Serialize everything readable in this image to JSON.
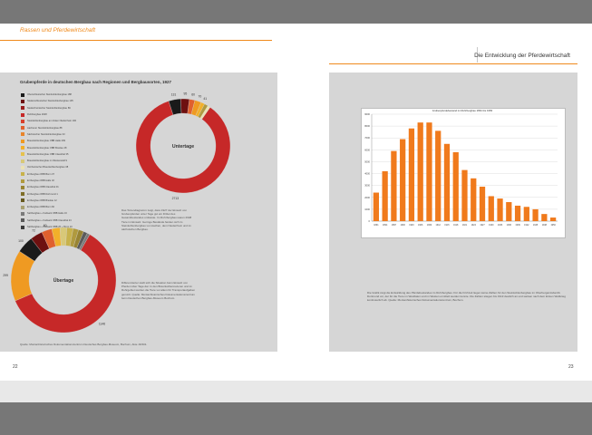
{
  "left_page": {
    "running_head": "Rassen und Pferdewirtschaft",
    "page_number": "22",
    "figure_title": "Grubenpferde in deutschen Bergbau nach Regionen und Bergbausorten, 1927",
    "legend": [
      {
        "label": "Oberschlesischer Steinkohlenbergbau 188",
        "color": "#1a1a1a"
      },
      {
        "label": "Niederschlesischer Steinkohlenbergbau 135",
        "color": "#6e1010"
      },
      {
        "label": "Niederrheinischer Steinkohlenbergbau 89",
        "color": "#991c1c"
      },
      {
        "label": "Ruhrbergbau 2948",
        "color": "#c62828"
      },
      {
        "label": "Steinkohlenbergbau am linken Niederrhein 190",
        "color": "#d8402c"
      },
      {
        "label": "Aachener Steinkohlenbergbau 88",
        "color": "#e0602e"
      },
      {
        "label": "Sächsischer Steinkohlenbergbau 33",
        "color": "#e8842a"
      },
      {
        "label": "Braunkohlenbergbau OBB Halle 299",
        "color": "#ef9a22"
      },
      {
        "label": "Braunkohlenbergbau OBB Breslau 48",
        "color": "#f2b02a"
      },
      {
        "label": "Braunkohlenbergbau OBB Clausthal 35",
        "color": "#e6c24e"
      },
      {
        "label": "Braunkohlenbergbau im Westerwald 9",
        "color": "#d8c878"
      },
      {
        "label": "Ostrheinischer Braunkohlenbergbau 38",
        "color": "#ece2b4"
      },
      {
        "label": "Erzbergbau OBB Bonn 37",
        "color": "#c8b24c"
      },
      {
        "label": "Erzbergbau OBB Halle 32",
        "color": "#b09a3e"
      },
      {
        "label": "Erzbergbau OBB Clausthal 31",
        "color": "#988432"
      },
      {
        "label": "Erzbergbau OBB Dortmund 1",
        "color": "#7e6e28"
      },
      {
        "label": "Erzbergbau OBB Breslau 12",
        "color": "#665a20"
      },
      {
        "label": "Erzbergbau OBB Bonn 60",
        "color": "#a8a070"
      },
      {
        "label": "Salzbergbau + Kaliwerk OBB Halle 16",
        "color": "#7a7a7a"
      },
      {
        "label": "Salzbergbau + Kaliwerk OBB Clausthal 23",
        "color": "#5a5a5a"
      },
      {
        "label": "Salzbergbau + Kaliwerk OBB 25 + Bonn 10",
        "color": "#3a3a3a"
      }
    ],
    "donut_top": {
      "label": "Untertage",
      "slices": [
        {
          "value": 2713,
          "color": "#c62828",
          "label": "2713"
        },
        {
          "value": 131,
          "color": "#1a1a1a",
          "label": "131"
        },
        {
          "value": 95,
          "color": "#6e1010",
          "label": "95"
        },
        {
          "value": 60,
          "color": "#e0602e",
          "label": "60"
        },
        {
          "value": 70,
          "color": "#ef9a22",
          "label": "70"
        },
        {
          "value": 41,
          "color": "#f2b02a",
          "label": "41"
        },
        {
          "value": 40,
          "color": "#b09a3e",
          "label": ""
        },
        {
          "value": 30,
          "color": "#ece2b4",
          "label": ""
        }
      ]
    },
    "donut_bottom": {
      "label": "Übertage",
      "slices": [
        {
          "value": 1146,
          "color": "#c62828",
          "label": "1146"
        },
        {
          "value": 299,
          "color": "#ef9a22",
          "label": "299"
        },
        {
          "value": 100,
          "color": "#1a1a1a",
          "label": "100"
        },
        {
          "value": 72,
          "color": "#6e1010",
          "label": "72"
        },
        {
          "value": 60,
          "color": "#e0602e",
          "label": "60"
        },
        {
          "value": 48,
          "color": "#f2b02a",
          "label": ""
        },
        {
          "value": 40,
          "color": "#d8c878",
          "label": ""
        },
        {
          "value": 37,
          "color": "#c8b24c",
          "label": ""
        },
        {
          "value": 32,
          "color": "#b09a3e",
          "label": ""
        },
        {
          "value": 31,
          "color": "#988432",
          "label": ""
        },
        {
          "value": 23,
          "color": "#5a5a5a",
          "label": ""
        },
        {
          "value": 16,
          "color": "#7a7a7a",
          "label": ""
        }
      ]
    },
    "text_block_1": "Das Tortendiagramm zeigt, dass 1927 der Einsatz von Grubenpferden unter Tage gut ein Drittel des Gesamtbestandes umfasste. Im Ruhrbergbau waren 2948 Tiere im Einsatz. Geringe Bestände fanden sich im Steinkohlenbergbau von Aachen, dem Niederrhein und im sächsischen Bergbau.",
    "text_block_2": "Differenzierter stellt sich die Situation beim Einsatz von Pferden über Tage dar. In den Braunkohlenrevieren und im Ruhrgebiet wurden die Tiere vor allem für Transportaufgaben genutzt. Quelle: Montanhistorisches Dokumentationszentrum beim Deutschen Bergbau-Museum Bochum.",
    "source": "Quelle: Montanhistorisches Dokumentationszentrum Deutsches Bergbau-Museum, Bochum, Akte 16/301."
  },
  "right_page": {
    "running_head": "Die Entwicklung der Pferdewirtschaft",
    "page_number": "23",
    "chart_title": "Grubenpferdebestand im Ruhrbergbau 1891 bis 1950",
    "text_block": "Die Grafik zeigt die Entwicklung des Pferdebestandes im Ruhrbergbau. Für die Frühzeit liegen keine Zahlen für den Steinkohlenbergbau im Oberbergamtsbezirk Dortmund vor, der für die Tiere im Westfalen und im Westen ermittelt werden konnte. Die Zahlen stiegen bis 1913 deutlich an und sanken nach dem Ersten Weltkrieg kontinuierlich ab. Quelle: Montanhistorisches Dokumentationszentrum, Bochum."
  },
  "chart_data": {
    "type": "bar",
    "title": "Grubenpferdebestand im Ruhrbergbau 1891 bis 1950",
    "categories": [
      "1891",
      "1894",
      "1897",
      "1900",
      "1903",
      "1906",
      "1909",
      "1912",
      "1915",
      "1918",
      "1921",
      "1924",
      "1927",
      "1930",
      "1933",
      "1936",
      "1939",
      "1942",
      "1945",
      "1948",
      "1950"
    ],
    "values": [
      2400,
      4200,
      5900,
      6900,
      7800,
      8300,
      8300,
      7600,
      6500,
      5800,
      4300,
      3600,
      2900,
      2100,
      1900,
      1600,
      1300,
      1200,
      1000,
      600,
      300
    ],
    "ylim": [
      0,
      9000
    ],
    "yticks": [
      0,
      1000,
      2000,
      3000,
      4000,
      5000,
      6000,
      7000,
      8000,
      9000
    ],
    "color": "#f07a1c",
    "grid": true
  }
}
